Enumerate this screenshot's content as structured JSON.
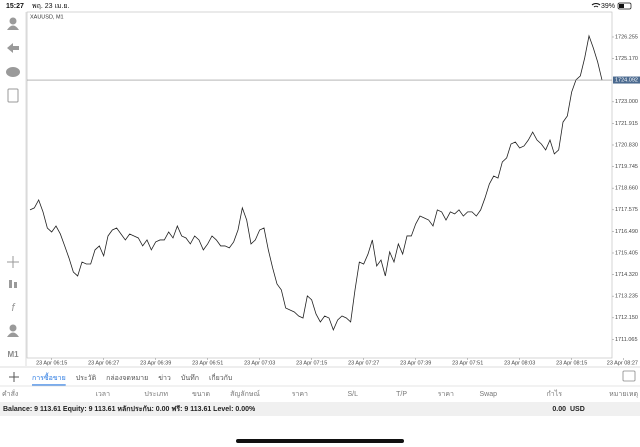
{
  "status_bar": {
    "time": "15:27",
    "date": "พฤ. 23 เม.ย.",
    "battery": "39%"
  },
  "sidebar": {
    "timeframe": "M1"
  },
  "chart_data": {
    "type": "line",
    "title": "XAUUSD, M1",
    "color": "#222222",
    "categories": [
      null,
      null,
      null,
      null,
      null,
      "23 Apr 06:15",
      null,
      null,
      null,
      null,
      null,
      null,
      null,
      null,
      null,
      null,
      null,
      "23 Apr 06:27",
      null,
      null,
      null,
      null,
      null,
      null,
      null,
      null,
      null,
      null,
      null,
      "23 Apr 06:39",
      null,
      null,
      null,
      null,
      null,
      null,
      null,
      null,
      null,
      null,
      null,
      "23 Apr 06:51",
      null,
      null,
      null,
      null,
      null,
      null,
      null,
      null,
      null,
      null,
      null,
      "23 Apr 07:03",
      null,
      null,
      null,
      null,
      null,
      null,
      null,
      null,
      null,
      null,
      null,
      "23 Apr 07:15",
      null,
      null,
      null,
      null,
      null,
      null,
      null,
      null,
      null,
      null,
      null,
      "23 Apr 07:27",
      null,
      null,
      null,
      null,
      null,
      null,
      null,
      null,
      null,
      null,
      null,
      "23 Apr 07:39",
      null,
      null,
      null,
      null,
      null,
      null,
      null,
      null,
      null,
      null,
      null,
      "23 Apr 07:51",
      null,
      null,
      null,
      null,
      null,
      null,
      null,
      null,
      null,
      null,
      null,
      "23 Apr 08:03",
      null,
      null,
      null,
      null,
      null,
      null,
      null,
      null,
      null,
      null,
      null,
      "23 Apr 08:15",
      null,
      null,
      null,
      null,
      null,
      null,
      null,
      null,
      null,
      null,
      null,
      "23 Apr 08:27"
    ],
    "values": [
      1717.57,
      1717.67,
      1718.07,
      1717.47,
      1716.66,
      1716.46,
      1716.76,
      1716.36,
      1715.76,
      1715.15,
      1714.45,
      1714.25,
      1714.95,
      1714.85,
      1714.85,
      1715.56,
      1715.76,
      1715.26,
      1716.26,
      1716.56,
      1716.66,
      1716.36,
      1716.06,
      1716.36,
      1716.26,
      1716.16,
      1715.76,
      1716.06,
      1715.56,
      1715.96,
      1716.06,
      1716.06,
      1716.46,
      1716.16,
      1716.76,
      1716.26,
      1716.16,
      1715.86,
      1716.26,
      1716.06,
      1715.56,
      1715.86,
      1716.26,
      1716.06,
      1715.76,
      1715.76,
      1715.66,
      1715.96,
      1716.56,
      1717.67,
      1717.06,
      1715.86,
      1716.06,
      1716.56,
      1716.66,
      1715.56,
      1714.65,
      1713.85,
      1713.55,
      1712.64,
      1712.54,
      1712.44,
      1712.24,
      1712.14,
      1713.25,
      1713.05,
      1712.34,
      1711.94,
      1712.24,
      1712.14,
      1711.54,
      1712.04,
      1712.24,
      1712.14,
      1711.94,
      1713.55,
      1714.95,
      1714.85,
      1715.35,
      1716.06,
      1714.75,
      1715.05,
      1714.25,
      1715.46,
      1714.95,
      1715.86,
      1715.35,
      1716.26,
      1716.26,
      1716.86,
      1717.26,
      1717.16,
      1717.06,
      1716.76,
      1717.57,
      1717.47,
      1717.06,
      1717.47,
      1717.37,
      1717.57,
      1717.26,
      1717.47,
      1717.47,
      1717.26,
      1717.57,
      1718.17,
      1718.87,
      1719.27,
      1719.17,
      1719.98,
      1720.18,
      1720.88,
      1720.98,
      1720.68,
      1720.78,
      1721.08,
      1721.48,
      1721.08,
      1720.88,
      1720.58,
      1721.08,
      1720.38,
      1720.58,
      1721.98,
      1722.29,
      1723.49,
      1724.1,
      1724.3,
      1725.2,
      1726.31,
      1725.7,
      1725.0,
      1724.09,
      null,
      null,
      null,
      null,
      null
    ],
    "current_price": 1724.092,
    "ylim": [
      1710.13,
      1727.51
    ],
    "yticks": [
      1726.255,
      {
        "value": 1725.17,
        "label": "1725.170"
      },
      {
        "value": 1723.0,
        "label": "1723.000"
      },
      1721.915,
      {
        "value": 1720.83,
        "label": "1720.830"
      },
      1719.745,
      {
        "value": 1718.66,
        "label": "1718.660"
      },
      1717.575,
      {
        "value": 1716.49,
        "label": "1716.490"
      },
      1715.405,
      {
        "value": 1714.32,
        "label": "1714.320"
      },
      1713.235,
      {
        "value": 1712.15,
        "label": "1712.150"
      },
      1711.065
    ],
    "grid": false
  },
  "tabs": [
    "การซื้อขาย",
    "ประวัติ",
    "กล่องจดหมาย",
    "ข่าว",
    "บันทึก",
    "เกี่ยวกับ"
  ],
  "columns": [
    "คำสั่ง",
    "เวลา",
    "ประเภท",
    "ขนาด",
    "สัญลักษณ์",
    "ราคา",
    "S/L",
    "T/P",
    "ราคา",
    "Swap",
    "กำไร",
    "หมายเหตุ"
  ],
  "account": {
    "summary": "Balance: 9 113.61 Equity: 9 113.61 หลักประกัน: 0.00 ฟรี: 9 113.61 Level: 0.00%",
    "total": "0.00",
    "currency": "USD"
  }
}
